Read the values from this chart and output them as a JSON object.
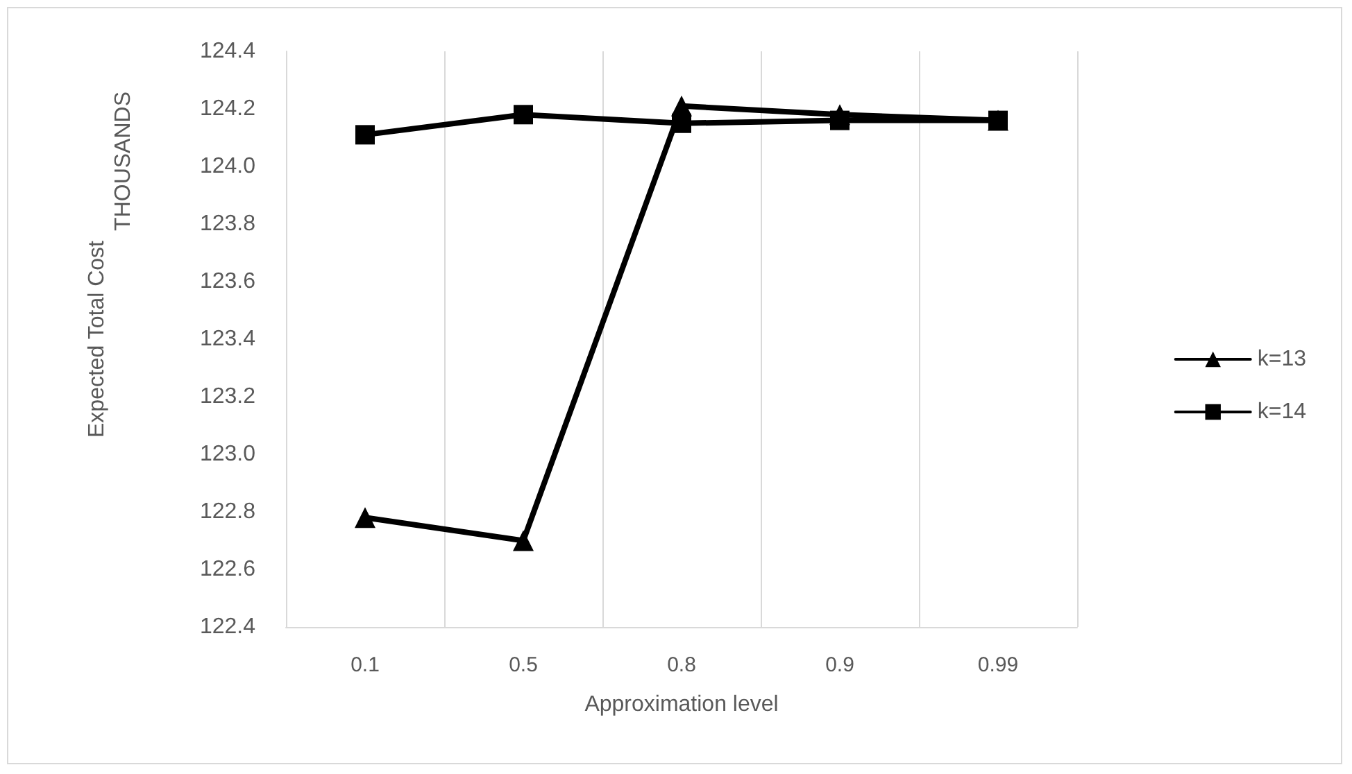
{
  "chart_data": {
    "type": "line",
    "xlabel": "Approximation level",
    "ylabel": "Expected Total Cost",
    "annotations": [
      "THOUSANDS"
    ],
    "categories": [
      "0.1",
      "0.5",
      "0.8",
      "0.9",
      "0.99"
    ],
    "series": [
      {
        "name": "k=13",
        "color": "#000000",
        "marker": "triangle",
        "values": [
          122.78,
          122.7,
          124.21,
          124.18,
          124.16
        ]
      },
      {
        "name": "k=14",
        "color": "#000000",
        "marker": "square",
        "values": [
          124.11,
          124.18,
          124.15,
          124.16,
          124.16
        ]
      }
    ],
    "ylim": [
      122.4,
      124.4
    ],
    "yticks": [
      122.4,
      122.6,
      122.8,
      {
        "value": 123,
        "label": "123.0"
      },
      123.2,
      123.4,
      123.6,
      123.8,
      {
        "value": 124,
        "label": "124.0"
      },
      124.2,
      124.4
    ],
    "grid": "x",
    "legend": "right",
    "line_style": "solid"
  }
}
